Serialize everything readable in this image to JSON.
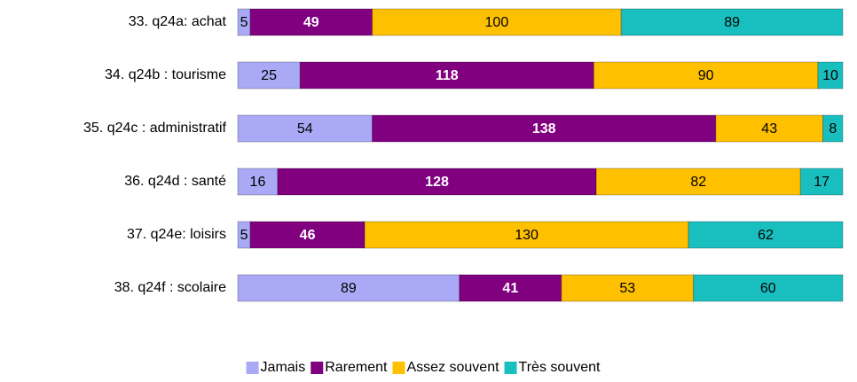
{
  "chart_data": {
    "type": "stacked-bar-horizontal",
    "categories": [
      "33. q24a: achat",
      "34. q24b : tourisme",
      "35. q24c : administratif",
      "36. q24d : santé",
      "37. q24e: loisirs",
      "38. q24f : scolaire"
    ],
    "series": [
      {
        "name": "Jamais",
        "color": "#a9a9f5",
        "label_color": "#000000",
        "values": [
          5,
          25,
          54,
          16,
          5,
          89
        ]
      },
      {
        "name": "Rarement",
        "color": "#800080",
        "label_color": "#ffffff",
        "values": [
          49,
          118,
          138,
          128,
          46,
          41
        ]
      },
      {
        "name": "Assez souvent",
        "color": "#ffc000",
        "label_color": "#000000",
        "values": [
          100,
          90,
          43,
          82,
          130,
          53
        ]
      },
      {
        "name": "Très souvent",
        "color": "#19bfbf",
        "label_color": "#000000",
        "values": [
          89,
          10,
          8,
          17,
          62,
          60
        ]
      }
    ],
    "legend": "bottom"
  }
}
